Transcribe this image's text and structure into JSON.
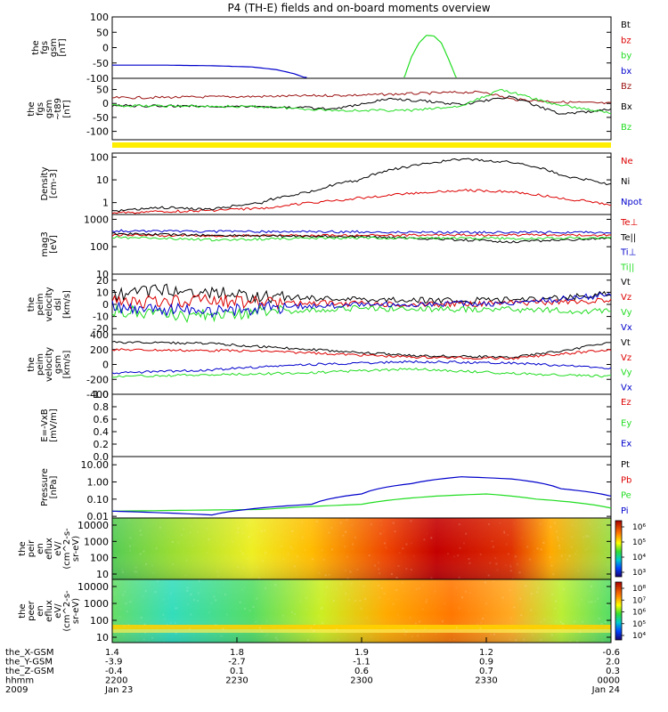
{
  "title": "P4 (TH-E) fields and on-board moments overview",
  "colors": {
    "black": "#000000",
    "red": "#dd0000",
    "green": "#22dd22",
    "blue": "#0000cc",
    "darkred": "#9a1010",
    "yellow": "#ffee00"
  },
  "chart_data": [
    {
      "type": "line",
      "ylabel": [
        "the",
        "fgs",
        "gsm",
        "[nT]"
      ],
      "ylim": [
        -100,
        100
      ],
      "yticks": [
        100,
        50,
        0,
        -50,
        -100
      ],
      "series": [
        {
          "name": "Bt",
          "color": "black"
        },
        {
          "name": "bz",
          "color": "red"
        },
        {
          "name": "by",
          "color": "green",
          "x": [
            0.585,
            0.6,
            0.615,
            0.63,
            0.645,
            0.66,
            0.675,
            0.69
          ],
          "y": [
            -100,
            -30,
            15,
            40,
            38,
            15,
            -40,
            -100
          ]
        },
        {
          "name": "bx",
          "color": "blue",
          "x": [
            0,
            0.1,
            0.2,
            0.28,
            0.33,
            0.365,
            0.39
          ],
          "y": [
            -57,
            -57,
            -59,
            -63,
            -72,
            -85,
            -100
          ]
        }
      ]
    },
    {
      "type": "line",
      "ylabel": [
        "the",
        "fgs",
        "gsm",
        "~t89",
        "[nT]"
      ],
      "ylim": [
        -130,
        90
      ],
      "yticks": [
        50,
        0,
        -50,
        -100
      ],
      "series": [
        {
          "name": "Bz",
          "color": "darkred",
          "x": [
            0,
            0.3,
            0.5,
            0.7,
            0.75,
            0.8,
            0.9,
            1.0
          ],
          "y": [
            20,
            25,
            30,
            40,
            40,
            15,
            5,
            0
          ]
        },
        {
          "name": "Bx",
          "color": "black",
          "x": [
            0,
            0.3,
            0.45,
            0.55,
            0.62,
            0.7,
            0.8,
            0.9,
            1.0
          ],
          "y": [
            -8,
            -10,
            -20,
            15,
            10,
            -5,
            25,
            -40,
            -20
          ]
        },
        {
          "name": "Bz",
          "color": "green",
          "x": [
            0,
            0.3,
            0.45,
            0.6,
            0.7,
            0.78,
            0.88,
            1.0
          ],
          "y": [
            -8,
            -12,
            -25,
            -25,
            -10,
            50,
            0,
            -35
          ]
        }
      ]
    },
    {
      "type": "line",
      "ylabel": [
        "Density",
        "[cm-3]"
      ],
      "ylog": true,
      "ylim": [
        0.3,
        150
      ],
      "yticks": [
        "100",
        "10",
        "1"
      ],
      "series": [
        {
          "name": "Ne",
          "color": "red",
          "x": [
            0,
            0.1,
            0.2,
            0.3,
            0.45,
            0.6,
            0.7,
            0.8,
            0.9,
            1.0
          ],
          "y": [
            0.35,
            0.4,
            0.45,
            0.55,
            1.2,
            2.5,
            3.5,
            3.0,
            1.5,
            0.8
          ]
        },
        {
          "name": "Ni",
          "color": "black",
          "x": [
            0,
            0.1,
            0.2,
            0.3,
            0.4,
            0.5,
            0.6,
            0.7,
            0.8,
            0.9,
            1.0
          ],
          "y": [
            0.4,
            0.6,
            0.5,
            1.0,
            3,
            10,
            40,
            80,
            60,
            15,
            6
          ]
        },
        {
          "name": "Npot",
          "color": "blue"
        }
      ]
    },
    {
      "type": "line",
      "ylabel": [
        "mag3",
        "[eV]"
      ],
      "ylog": true,
      "ylim": [
        10,
        1500
      ],
      "yticks": [
        "1000",
        "100",
        "10"
      ],
      "series": [
        {
          "name": "Te⊥",
          "color": "red",
          "x": [
            0,
            0.2,
            0.5,
            0.8,
            1.0
          ],
          "y": [
            270,
            250,
            260,
            270,
            260
          ]
        },
        {
          "name": "Te||",
          "color": "black",
          "x": [
            0,
            0.2,
            0.5,
            0.8,
            1.0
          ],
          "y": [
            300,
            260,
            230,
            150,
            200
          ]
        },
        {
          "name": "Ti⊥",
          "color": "blue",
          "x": [
            0,
            0.2,
            0.5,
            0.8,
            1.0
          ],
          "y": [
            380,
            360,
            350,
            330,
            340
          ]
        },
        {
          "name": "Ti||",
          "color": "green",
          "x": [
            0,
            0.2,
            0.5,
            0.8,
            1.0
          ],
          "y": [
            220,
            180,
            210,
            200,
            210
          ]
        }
      ]
    },
    {
      "type": "line",
      "ylabel": [
        "the",
        "peim",
        "velocity",
        "dsl",
        "[km/s]"
      ],
      "ylim": [
        -25,
        25
      ],
      "yticks": [
        20,
        10,
        0,
        -10,
        -20
      ],
      "series": [
        {
          "name": "Vt",
          "color": "black",
          "x": [
            0,
            0.1,
            0.2,
            0.3,
            0.5,
            0.7,
            0.9,
            1.0
          ],
          "y": [
            8,
            12,
            10,
            6,
            4,
            3,
            5,
            10
          ]
        },
        {
          "name": "Vz",
          "color": "red",
          "x": [
            0,
            0.2,
            0.4,
            0.6,
            0.8,
            1.0
          ],
          "y": [
            2,
            3,
            1,
            0,
            1,
            3
          ]
        },
        {
          "name": "Vy",
          "color": "green",
          "x": [
            0,
            0.15,
            0.3,
            0.5,
            0.7,
            0.9,
            1.0
          ],
          "y": [
            -5,
            -10,
            -6,
            -3,
            -4,
            -5,
            -6
          ]
        },
        {
          "name": "Vx",
          "color": "blue",
          "x": [
            0,
            0.2,
            0.4,
            0.6,
            0.8,
            1.0
          ],
          "y": [
            -2,
            -5,
            -1,
            0,
            1,
            8
          ]
        }
      ]
    },
    {
      "type": "line",
      "ylabel": [
        "the",
        "peim",
        "velocity",
        "gsm",
        "[km/s]"
      ],
      "ylim": [
        -400,
        400
      ],
      "yticks": [
        400,
        200,
        0,
        -200,
        -400
      ],
      "series": [
        {
          "name": "Vt",
          "color": "black",
          "x": [
            0,
            0.2,
            0.4,
            0.6,
            0.8,
            0.9,
            1.0
          ],
          "y": [
            300,
            280,
            200,
            120,
            100,
            180,
            300
          ]
        },
        {
          "name": "Vz",
          "color": "red",
          "x": [
            0,
            0.3,
            0.6,
            0.8,
            1.0
          ],
          "y": [
            200,
            180,
            100,
            80,
            200
          ]
        },
        {
          "name": "Vy",
          "color": "green",
          "x": [
            0,
            0.2,
            0.4,
            0.6,
            0.8,
            1.0
          ],
          "y": [
            -160,
            -140,
            -110,
            -60,
            -120,
            -160
          ]
        },
        {
          "name": "Vx",
          "color": "blue",
          "x": [
            0,
            0.2,
            0.4,
            0.6,
            0.8,
            1.0
          ],
          "y": [
            -120,
            -70,
            0,
            40,
            20,
            -50
          ]
        }
      ]
    },
    {
      "type": "line",
      "ylabel": [
        "E=-VxB",
        "[mV/m]"
      ],
      "ylim": [
        0,
        1
      ],
      "yticks": [
        "1.0",
        "0.8",
        "0.6",
        "0.4",
        "0.2",
        "0.0"
      ],
      "series": [
        {
          "name": "Ez",
          "color": "red"
        },
        {
          "name": "Ey",
          "color": "green"
        },
        {
          "name": "Ex",
          "color": "blue"
        }
      ]
    },
    {
      "type": "line",
      "ylabel": [
        "Pressure",
        "[nPa]"
      ],
      "ylog": true,
      "ylim": [
        0.008,
        30
      ],
      "yticks": [
        "10.00",
        "1.00",
        "0.10",
        "0.01"
      ],
      "series": [
        {
          "name": "Pt",
          "color": "black"
        },
        {
          "name": "Pb",
          "color": "red"
        },
        {
          "name": "Pe",
          "color": "green",
          "x": [
            0,
            0.3,
            0.5,
            0.65,
            0.75,
            0.85,
            1.0
          ],
          "y": [
            0.02,
            0.025,
            0.05,
            0.15,
            0.2,
            0.1,
            0.03
          ]
        },
        {
          "name": "Pi",
          "color": "blue",
          "x": [
            0,
            0.2,
            0.4,
            0.5,
            0.6,
            0.7,
            0.8,
            0.9,
            1.0
          ],
          "y": [
            0.02,
            0.012,
            0.05,
            0.2,
            0.8,
            2.0,
            1.5,
            0.4,
            0.15
          ]
        }
      ]
    },
    {
      "type": "heatmap",
      "ylabel": [
        "the",
        "peir",
        "en",
        "eflux",
        "eV/",
        "(cm^2-s-",
        "sr-eV)"
      ],
      "ylog": true,
      "yticks": [
        "10000",
        "1000",
        "100",
        "10"
      ],
      "colorbar": [
        "10⁶",
        "10⁵",
        "10⁴",
        "10³"
      ]
    },
    {
      "type": "heatmap",
      "ylabel": [
        "the",
        "peer",
        "en",
        "eflux",
        "eV/",
        "(cm^2-s-",
        "sr-eV)"
      ],
      "ylog": true,
      "yticks": [
        "10000",
        "1000",
        "100",
        "10"
      ],
      "colorbar": [
        "10⁸",
        "10⁷",
        "10⁶",
        "10⁵",
        "10⁴"
      ]
    }
  ],
  "xaxis": {
    "tick_fractions": [
      0,
      0.25,
      0.5,
      0.75,
      1.0
    ],
    "rows": [
      {
        "label": "the_X-GSM",
        "values": [
          "1.4",
          "1.8",
          "1.9",
          "1.2",
          "-0.6"
        ]
      },
      {
        "label": "the_Y-GSM",
        "values": [
          "-3.9",
          "-2.7",
          "-1.1",
          "0.9",
          "2.0"
        ]
      },
      {
        "label": "the_Z-GSM",
        "values": [
          "-0.4",
          "0.1",
          "0.6",
          "0.7",
          "0.3"
        ]
      },
      {
        "label": "hhmm",
        "values": [
          "2200",
          "2230",
          "2300",
          "2330",
          "0000"
        ]
      },
      {
        "label": "2009",
        "values": [
          "Jan 23",
          "",
          "",
          "",
          "Jan 24"
        ]
      }
    ]
  }
}
